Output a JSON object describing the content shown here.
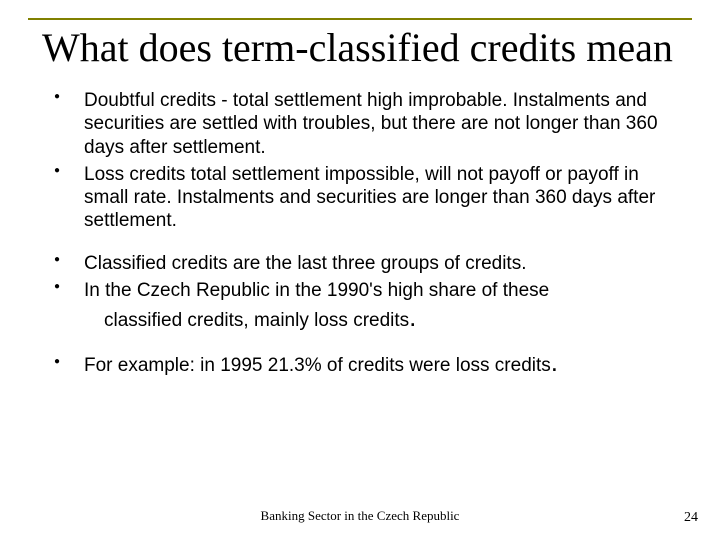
{
  "title": "What does term-classified credits mean",
  "bullets_group1": [
    "Doubtful credits - total settlement high improbable. Instalments and securities are settled with troubles, but there are not longer than 360 days after settlement.",
    "Loss credits total settlement impossible, will not payoff or payoff in small rate. Instalments and securities are longer than 360 days after settlement."
  ],
  "bullets_group2": [
    "Classified credits are the last three groups of credits.",
    "In the Czech Republic in the 1990's high share of these"
  ],
  "trailing_line": "classified credits, mainly loss credits",
  "bullets_group3": [
    "For example: in 1995 21.3% of credits were loss credits"
  ],
  "footer_center": "Banking Sector in the Czech Republic",
  "page_number": "24",
  "colors": {
    "rule": "#808000",
    "background": "#ffffff",
    "text": "#000000"
  },
  "typography": {
    "title_font": "Times New Roman",
    "title_size_pt": 40,
    "body_font": "Arial",
    "body_size_pt": 19,
    "footer_font": "Times New Roman",
    "footer_size_pt": 13
  }
}
